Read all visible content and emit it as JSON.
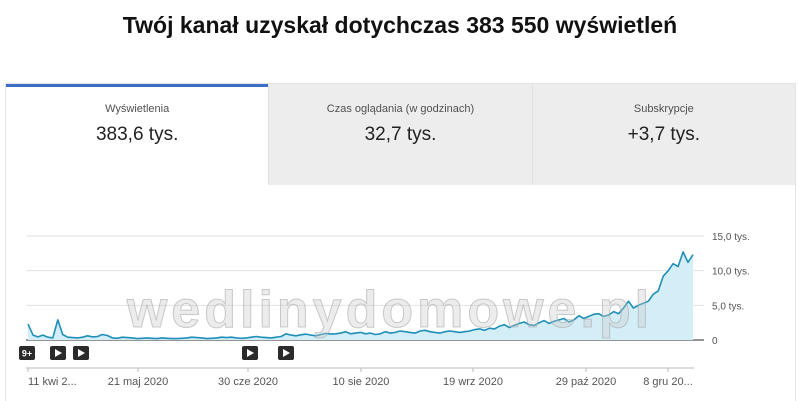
{
  "headline": "Twój kanał uzyskał dotychczas 383 550 wyświetleń",
  "tabs": [
    {
      "label": "Wyświetlenia",
      "value": "383,6 tys.",
      "active": true
    },
    {
      "label": "Czas oglądania (w godzinach)",
      "value": "32,7 tys.",
      "active": false
    },
    {
      "label": "Subskrypcje",
      "value": "+3,7 tys.",
      "active": false
    }
  ],
  "watermark": "wedlinydomowe.pl",
  "markers": [
    {
      "icon": "count-badge-icon",
      "text": "9+"
    },
    {
      "icon": "video-play-icon",
      "text": ""
    },
    {
      "icon": "video-play-icon",
      "text": ""
    },
    {
      "icon": "video-play-icon",
      "text": ""
    },
    {
      "icon": "video-play-icon",
      "text": ""
    }
  ],
  "colors": {
    "line": "#1f8fb8",
    "fill": "#d4eef8",
    "accent": "#3a6fc6"
  },
  "chart_data": {
    "type": "area",
    "ylim": [
      0,
      15000
    ],
    "y_ticks": [
      {
        "value": 0,
        "label": "0"
      },
      {
        "value": 5000,
        "label": "5,0 tys."
      },
      {
        "value": 10000,
        "label": "10,0 tys."
      },
      {
        "value": 15000,
        "label": "15,0 tys."
      }
    ],
    "x_ticks": [
      "11 kwi 2...",
      "21 maj 2020",
      "30 cze 2020",
      "10 sie 2020",
      "19 wrz 2020",
      "29 paź 2020",
      "8 gru 20..."
    ],
    "series": [
      {
        "values": [
          2300,
          700,
          450,
          700,
          400,
          300,
          2900,
          800,
          400,
          350,
          300,
          400,
          600,
          450,
          500,
          800,
          650,
          300,
          250,
          400,
          350,
          300,
          200,
          250,
          300,
          250,
          200,
          300,
          250,
          200,
          200,
          250,
          300,
          400,
          350,
          300,
          200,
          250,
          300,
          400,
          350,
          400,
          300,
          250,
          300,
          400,
          500,
          400,
          350,
          300,
          400,
          500,
          900,
          700,
          600,
          750,
          850,
          700,
          600,
          800,
          950,
          850,
          900,
          1000,
          1200,
          900,
          1000,
          1100,
          900,
          1000,
          800,
          900,
          1200,
          1000,
          1100,
          1300,
          1200,
          1100,
          1000,
          1300,
          1400,
          1200,
          1100,
          1000,
          1200,
          1300,
          1200,
          1100,
          1200,
          1300,
          1500,
          1600,
          1400,
          1700,
          1600,
          2000,
          2200,
          1800,
          2100,
          2400,
          2600,
          2200,
          2100,
          2500,
          2800,
          2400,
          2700,
          2900,
          3100,
          2600,
          2900,
          3500,
          3100,
          3400,
          3700,
          3800,
          3400,
          3600,
          4100,
          3800,
          4600,
          5600,
          4600,
          5000,
          5300,
          5600,
          6600,
          7100,
          9200,
          10000,
          11000,
          10600,
          12700,
          11200,
          12300
        ]
      }
    ]
  }
}
